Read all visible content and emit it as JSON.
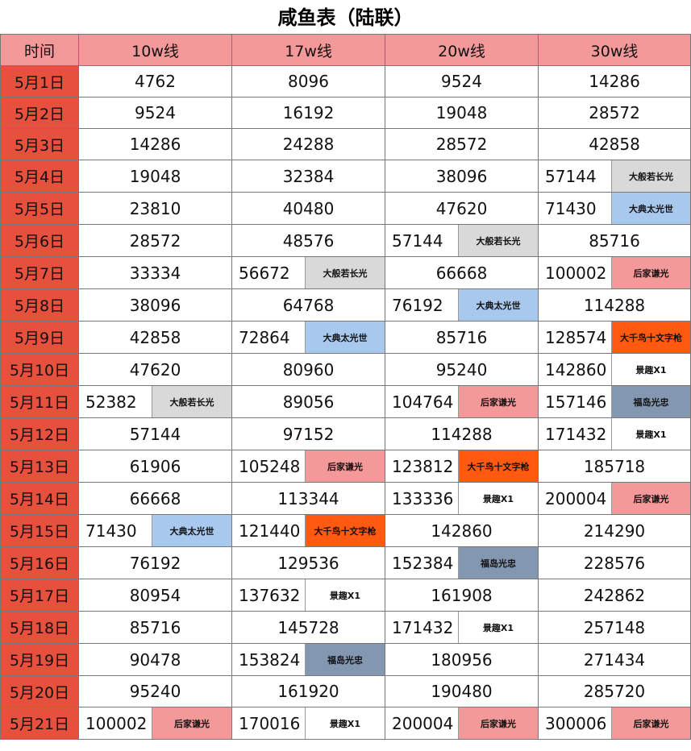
{
  "title": "咸鱼表（陆联）",
  "headers": [
    "时间",
    "10w线",
    "17w线",
    "20w线",
    "30w线"
  ],
  "colors": {
    "header_bg": "#f4999a",
    "date_bg": "#e8503e",
    "gray": "#d9d9d9",
    "blue": "#a8c8ee",
    "pink": "#f4999a",
    "orange": "#ff5a0f",
    "slate": "#8497b0",
    "white": "#ffffff"
  },
  "rows": [
    {
      "date": "5月1日",
      "cells": [
        {
          "v": "4762"
        },
        {
          "v": "8096"
        },
        {
          "v": "9524"
        },
        {
          "v": "14286"
        }
      ]
    },
    {
      "date": "5月2日",
      "cells": [
        {
          "v": "9524"
        },
        {
          "v": "16192"
        },
        {
          "v": "19048"
        },
        {
          "v": "28572"
        }
      ]
    },
    {
      "date": "5月3日",
      "cells": [
        {
          "v": "14286"
        },
        {
          "v": "24288"
        },
        {
          "v": "28572"
        },
        {
          "v": "42858"
        }
      ]
    },
    {
      "date": "5月4日",
      "cells": [
        {
          "v": "19048"
        },
        {
          "v": "32384"
        },
        {
          "v": "38096"
        },
        {
          "v": "57144",
          "tag": "大般若长光",
          "color": "gray"
        }
      ]
    },
    {
      "date": "5月5日",
      "cells": [
        {
          "v": "23810"
        },
        {
          "v": "40480"
        },
        {
          "v": "47620"
        },
        {
          "v": "71430",
          "tag": "大典太光世",
          "color": "blue"
        }
      ]
    },
    {
      "date": "5月6日",
      "cells": [
        {
          "v": "28572"
        },
        {
          "v": "48576"
        },
        {
          "v": "57144",
          "tag": "大般若长光",
          "color": "gray"
        },
        {
          "v": "85716"
        }
      ]
    },
    {
      "date": "5月7日",
      "cells": [
        {
          "v": "33334"
        },
        {
          "v": "56672",
          "tag": "大般若长光",
          "color": "gray"
        },
        {
          "v": "66668"
        },
        {
          "v": "100002",
          "tag": "后家谦光",
          "color": "pink"
        }
      ]
    },
    {
      "date": "5月8日",
      "cells": [
        {
          "v": "38096"
        },
        {
          "v": "64768"
        },
        {
          "v": "76192",
          "tag": "大典太光世",
          "color": "blue"
        },
        {
          "v": "114288"
        }
      ]
    },
    {
      "date": "5月9日",
      "cells": [
        {
          "v": "42858"
        },
        {
          "v": "72864",
          "tag": "大典太光世",
          "color": "blue"
        },
        {
          "v": "85716"
        },
        {
          "v": "128574",
          "tag": "大千鸟十文字枪",
          "color": "orange"
        }
      ]
    },
    {
      "date": "5月10日",
      "cells": [
        {
          "v": "47620"
        },
        {
          "v": "80960"
        },
        {
          "v": "95240"
        },
        {
          "v": "142860",
          "tag": "景趣X1",
          "color": "white"
        }
      ]
    },
    {
      "date": "5月11日",
      "cells": [
        {
          "v": "52382",
          "tag": "大般若长光",
          "color": "gray"
        },
        {
          "v": "89056"
        },
        {
          "v": "104764",
          "tag": "后家谦光",
          "color": "pink"
        },
        {
          "v": "157146",
          "tag": "福岛光忠",
          "color": "slate"
        }
      ]
    },
    {
      "date": "5月12日",
      "cells": [
        {
          "v": "57144"
        },
        {
          "v": "97152"
        },
        {
          "v": "114288"
        },
        {
          "v": "171432",
          "tag": "景趣X1",
          "color": "white"
        }
      ]
    },
    {
      "date": "5月13日",
      "cells": [
        {
          "v": "61906"
        },
        {
          "v": "105248",
          "tag": "后家谦光",
          "color": "pink"
        },
        {
          "v": "123812",
          "tag": "大千鸟十文字枪",
          "color": "orange"
        },
        {
          "v": "185718"
        }
      ]
    },
    {
      "date": "5月14日",
      "cells": [
        {
          "v": "66668"
        },
        {
          "v": "113344"
        },
        {
          "v": "133336",
          "tag": "景趣X1",
          "color": "white"
        },
        {
          "v": "200004",
          "tag": "后家谦光",
          "color": "pink"
        }
      ]
    },
    {
      "date": "5月15日",
      "cells": [
        {
          "v": "71430",
          "tag": "大典太光世",
          "color": "blue"
        },
        {
          "v": "121440",
          "tag": "大千鸟十文字枪",
          "color": "orange"
        },
        {
          "v": "142860"
        },
        {
          "v": "214290"
        }
      ]
    },
    {
      "date": "5月16日",
      "cells": [
        {
          "v": "76192"
        },
        {
          "v": "129536"
        },
        {
          "v": "152384",
          "tag": "福岛光忠",
          "color": "slate"
        },
        {
          "v": "228576"
        }
      ]
    },
    {
      "date": "5月17日",
      "cells": [
        {
          "v": "80954"
        },
        {
          "v": "137632",
          "tag": "景趣X1",
          "color": "white"
        },
        {
          "v": "161908"
        },
        {
          "v": "242862"
        }
      ]
    },
    {
      "date": "5月18日",
      "cells": [
        {
          "v": "85716"
        },
        {
          "v": "145728"
        },
        {
          "v": "171432",
          "tag": "景趣X1",
          "color": "white"
        },
        {
          "v": "257148"
        }
      ]
    },
    {
      "date": "5月19日",
      "cells": [
        {
          "v": "90478"
        },
        {
          "v": "153824",
          "tag": "福岛光忠",
          "color": "slate"
        },
        {
          "v": "180956"
        },
        {
          "v": "271434"
        }
      ]
    },
    {
      "date": "5月20日",
      "cells": [
        {
          "v": "95240"
        },
        {
          "v": "161920"
        },
        {
          "v": "190480"
        },
        {
          "v": "285720"
        }
      ]
    },
    {
      "date": "5月21日",
      "cells": [
        {
          "v": "100002",
          "tag": "后家谦光",
          "color": "pink"
        },
        {
          "v": "170016",
          "tag": "景趣X1",
          "color": "white"
        },
        {
          "v": "200004",
          "tag": "后家谦光",
          "color": "pink"
        },
        {
          "v": "300006",
          "tag": "后家谦光",
          "color": "pink"
        }
      ]
    }
  ]
}
